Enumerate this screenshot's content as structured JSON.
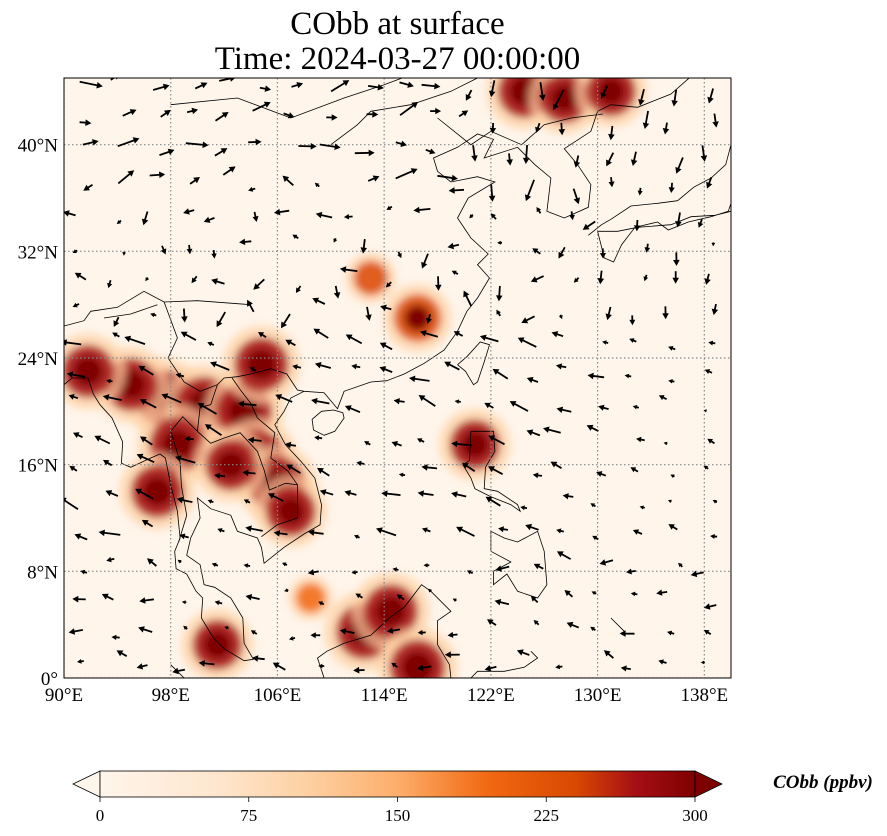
{
  "title": {
    "line1": "CObb at surface",
    "line2": "Time: 2024-03-27 00:00:00"
  },
  "map": {
    "lon_range": [
      90,
      140
    ],
    "lat_range": [
      0,
      45
    ],
    "lon_ticks": [
      {
        "value": 90,
        "label": "90°E"
      },
      {
        "value": 98,
        "label": "98°E"
      },
      {
        "value": 106,
        "label": "106°E"
      },
      {
        "value": 114,
        "label": "114°E"
      },
      {
        "value": 122,
        "label": "122°E"
      },
      {
        "value": 130,
        "label": "130°E"
      },
      {
        "value": 138,
        "label": "138°E"
      }
    ],
    "lat_ticks": [
      {
        "value": 0,
        "label": "0°"
      },
      {
        "value": 8,
        "label": "8°N"
      },
      {
        "value": 16,
        "label": "16°N"
      },
      {
        "value": 24,
        "label": "24°N"
      },
      {
        "value": 32,
        "label": "32°N"
      },
      {
        "value": 40,
        "label": "40°N"
      }
    ],
    "gridlines": true,
    "colormap": [
      "#fff5eb",
      "#fdd0a2",
      "#fd8d3c",
      "#d94801",
      "#a50f15",
      "#7f0000"
    ],
    "hotspots": [
      {
        "lon": 97.5,
        "lat": 21.0,
        "intensity": 300
      },
      {
        "lon": 100.5,
        "lat": 20.5,
        "intensity": 300
      },
      {
        "lon": 103.5,
        "lat": 20.0,
        "intensity": 300
      },
      {
        "lon": 104.8,
        "lat": 23.5,
        "intensity": 290
      },
      {
        "lon": 95.0,
        "lat": 22.0,
        "intensity": 280
      },
      {
        "lon": 91.8,
        "lat": 23.0,
        "intensity": 280
      },
      {
        "lon": 98.5,
        "lat": 17.5,
        "intensity": 300
      },
      {
        "lon": 97.0,
        "lat": 14.0,
        "intensity": 280
      },
      {
        "lon": 104.5,
        "lat": 16.5,
        "intensity": 300
      },
      {
        "lon": 106.0,
        "lat": 14.5,
        "intensity": 300
      },
      {
        "lon": 102.5,
        "lat": 16.0,
        "intensity": 270
      },
      {
        "lon": 107.0,
        "lat": 12.5,
        "intensity": 260
      },
      {
        "lon": 112.5,
        "lat": 3.5,
        "intensity": 300
      },
      {
        "lon": 114.5,
        "lat": 5.0,
        "intensity": 290
      },
      {
        "lon": 116.5,
        "lat": 0.8,
        "intensity": 300
      },
      {
        "lon": 116.5,
        "lat": 27.0,
        "intensity": 240
      },
      {
        "lon": 120.8,
        "lat": 17.5,
        "intensity": 260
      },
      {
        "lon": 124.5,
        "lat": 44.0,
        "intensity": 280
      },
      {
        "lon": 127.5,
        "lat": 43.5,
        "intensity": 260
      },
      {
        "lon": 131.0,
        "lat": 44.0,
        "intensity": 260
      },
      {
        "lon": 101.5,
        "lat": 2.5,
        "intensity": 260
      },
      {
        "lon": 113.0,
        "lat": 30.0,
        "intensity": 150
      },
      {
        "lon": 108.5,
        "lat": 6.0,
        "intensity": 120
      }
    ]
  },
  "colorbar": {
    "ticks": [
      {
        "value": 0,
        "label": "0"
      },
      {
        "value": 75,
        "label": "75"
      },
      {
        "value": 150,
        "label": "150"
      },
      {
        "value": 225,
        "label": "225"
      },
      {
        "value": 300,
        "label": "300"
      }
    ],
    "range": [
      0,
      300
    ],
    "label": "CObb (ppbv)",
    "extend": "both"
  }
}
